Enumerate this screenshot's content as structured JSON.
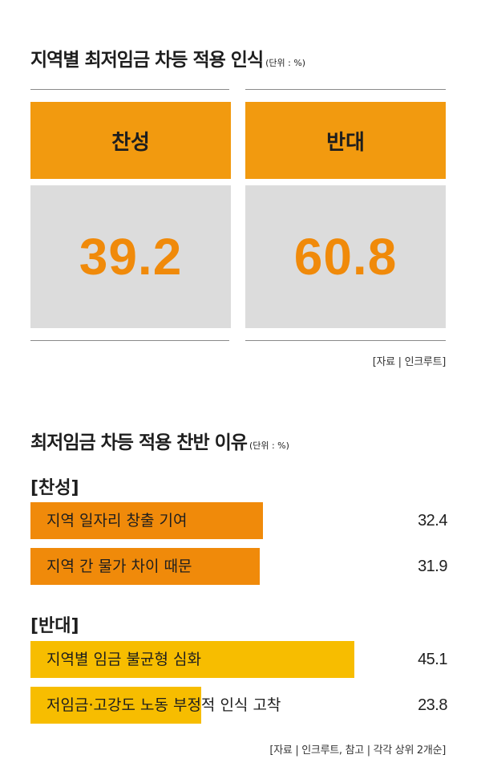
{
  "section1": {
    "title": "지역별 최저임금 차등 적용 인식",
    "unit": "(단위 : %)",
    "cards": [
      {
        "label": "찬성",
        "value": "39.2"
      },
      {
        "label": "반대",
        "value": "60.8"
      }
    ],
    "source": "[자료 | 인크루트]"
  },
  "section2": {
    "title": "최저임금 차등 적용 찬반 이유",
    "unit": "(단위 : %)",
    "source": "[자료 | 인크루트, 참고 | 각각 상위 2개순]"
  },
  "chart_data": [
    {
      "type": "bar",
      "title": "지역별 최저임금 차등 적용 인식",
      "categories": [
        "찬성",
        "반대"
      ],
      "values": [
        39.2,
        60.8
      ]
    },
    {
      "type": "bar",
      "title": "최저임금 차등 적용 찬반 이유",
      "orientation": "horizontal",
      "groups": [
        {
          "name": "[찬성]",
          "color": "#f08a0a",
          "items": [
            {
              "label": "지역 일자리 창출 기여",
              "value": 32.4
            },
            {
              "label": "지역 간 물가 차이 때문",
              "value": 31.9
            }
          ]
        },
        {
          "name": "[반대]",
          "color": "#f7bd00",
          "items": [
            {
              "label": "지역별 임금 불균형 심화",
              "value": 45.1
            },
            {
              "label": "저임금·고강도 노동 부정적 인식 고착",
              "value": 23.8
            }
          ]
        }
      ],
      "xlim": [
        0,
        58
      ]
    }
  ]
}
